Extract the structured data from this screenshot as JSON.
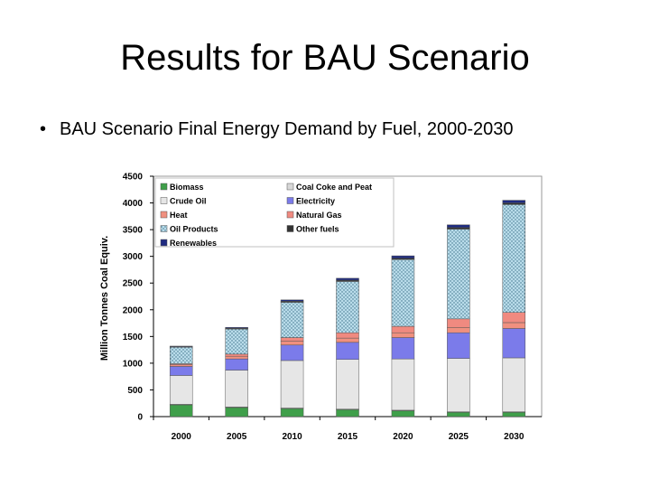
{
  "slide": {
    "title": "Results for BAU Scenario",
    "bullet": "BAU Scenario Final Energy Demand by Fuel, 2000-2030"
  },
  "chart_data": {
    "type": "bar",
    "stacked": true,
    "categories": [
      "2000",
      "2005",
      "2010",
      "2015",
      "2020",
      "2025",
      "2030"
    ],
    "ylabel": "Million Tonnes Coal Equiv.",
    "ylim": [
      0,
      4500
    ],
    "yticks": [
      "0",
      "500",
      "1000",
      "1500",
      "2000",
      "2500",
      "3000",
      "3500",
      "4000",
      "4500"
    ],
    "grid": false,
    "legend_position": "top-left",
    "series": [
      {
        "name": "Biomass",
        "color": "#3f9f4a",
        "pattern": "none",
        "values": [
          220,
          170,
          150,
          130,
          110,
          80,
          80
        ]
      },
      {
        "name": "Coal Coke and Peat",
        "color": "#d8d8d8",
        "pattern": "none",
        "values": [
          10,
          10,
          10,
          10,
          10,
          10,
          10
        ]
      },
      {
        "name": "Crude Oil",
        "color": "#e6e6e6",
        "pattern": "none",
        "values": [
          540,
          690,
          890,
          930,
          960,
          1000,
          1010
        ]
      },
      {
        "name": "Electricity",
        "color": "#7b7bea",
        "pattern": "none",
        "values": [
          170,
          210,
          290,
          320,
          400,
          480,
          550
        ]
      },
      {
        "name": "Heat",
        "color": "#f0907f",
        "pattern": "none",
        "values": [
          30,
          50,
          70,
          80,
          90,
          100,
          110
        ]
      },
      {
        "name": "Natural Gas",
        "color": "#f08a80",
        "pattern": "none",
        "values": [
          20,
          40,
          70,
          100,
          120,
          160,
          190
        ]
      },
      {
        "name": "Oil Products",
        "color": "#a9d4e6",
        "pattern": "dots",
        "values": [
          310,
          470,
          660,
          960,
          1250,
          1680,
          2020
        ]
      },
      {
        "name": "Other fuels",
        "color": "#333333",
        "pattern": "none",
        "values": [
          10,
          15,
          20,
          25,
          25,
          30,
          30
        ]
      },
      {
        "name": "Renewables",
        "color": "#1e2a80",
        "pattern": "none",
        "values": [
          10,
          15,
          25,
          35,
          45,
          50,
          50
        ]
      }
    ],
    "legend_order": [
      "Biomass",
      "Coal Coke and Peat",
      "Crude Oil",
      "Electricity",
      "Heat",
      "Natural Gas",
      "Oil Products",
      "Other fuels",
      "Renewables"
    ]
  }
}
